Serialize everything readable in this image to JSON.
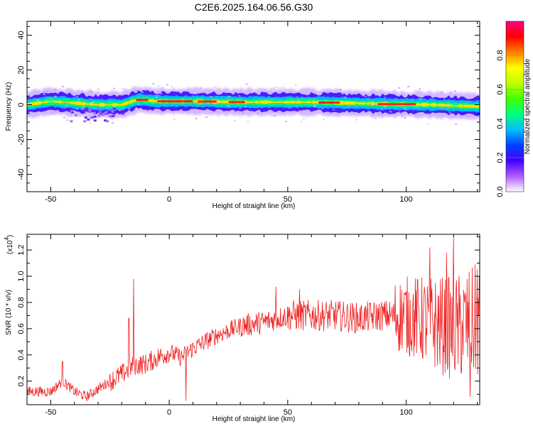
{
  "title": "C2E6.2025.164.06.56.G30",
  "chart_data": [
    {
      "type": "heatmap",
      "xlabel": "Height of straight line (km)",
      "ylabel": "Frequency (Hz)",
      "xlim": [
        -60,
        131
      ],
      "ylim": [
        -50,
        48
      ],
      "xticks": [
        -50,
        0,
        50,
        100
      ],
      "yticks": [
        -40,
        -20,
        0,
        20,
        40
      ],
      "colorbar": {
        "label": "Normalized spectral amplitude",
        "range": [
          0,
          1
        ],
        "ticks": [
          "0.0",
          "0.2",
          "0.4",
          "0.6",
          "0.8"
        ],
        "colors": [
          "#ffffff",
          "#b05cff",
          "#4000ff",
          "#0040ff",
          "#00c0ff",
          "#00ff80",
          "#40ff00",
          "#c0ff00",
          "#ffff00",
          "#ff8000",
          "#ff0000",
          "#ff0080"
        ]
      },
      "band_center_hz": [
        {
          "x": -60,
          "y": 0
        },
        {
          "x": -50,
          "y": 2
        },
        {
          "x": -40,
          "y": 1
        },
        {
          "x": -30,
          "y": 0
        },
        {
          "x": -20,
          "y": 0
        },
        {
          "x": -13,
          "y": 3
        },
        {
          "x": -5,
          "y": 2
        },
        {
          "x": 10,
          "y": 2
        },
        {
          "x": 30,
          "y": 1.5
        },
        {
          "x": 60,
          "y": 1.5
        },
        {
          "x": 90,
          "y": 0.5
        },
        {
          "x": 110,
          "y": 0
        },
        {
          "x": 131,
          "y": -1
        }
      ]
    },
    {
      "type": "line",
      "xlabel": "Height of straight line (km)",
      "ylabel": "SNR (10 * v/v)",
      "multiplier": "(x10",
      "multiplier_exp": "4",
      "multiplier_close": ")",
      "xlim": [
        -60,
        131
      ],
      "ylim": [
        0.02,
        1.32
      ],
      "xticks": [
        -50,
        0,
        50,
        100
      ],
      "yticks": [
        "0.2",
        "0.4",
        "0.6",
        "0.8",
        "1.0",
        "1.2"
      ],
      "series": [
        {
          "color": "#ee2222",
          "envelope": [
            {
              "x": -60,
              "y": 0.12
            },
            {
              "x": -50,
              "y": 0.12
            },
            {
              "x": -45,
              "y": 0.2
            },
            {
              "x": -40,
              "y": 0.12
            },
            {
              "x": -35,
              "y": 0.08
            },
            {
              "x": -30,
              "y": 0.14
            },
            {
              "x": -25,
              "y": 0.2
            },
            {
              "x": -20,
              "y": 0.25
            },
            {
              "x": -15,
              "y": 0.32
            },
            {
              "x": -10,
              "y": 0.33
            },
            {
              "x": -5,
              "y": 0.38
            },
            {
              "x": 0,
              "y": 0.42
            },
            {
              "x": 5,
              "y": 0.38
            },
            {
              "x": 10,
              "y": 0.45
            },
            {
              "x": 20,
              "y": 0.55
            },
            {
              "x": 30,
              "y": 0.62
            },
            {
              "x": 40,
              "y": 0.65
            },
            {
              "x": 50,
              "y": 0.7
            },
            {
              "x": 60,
              "y": 0.7
            },
            {
              "x": 70,
              "y": 0.7
            },
            {
              "x": 80,
              "y": 0.68
            },
            {
              "x": 90,
              "y": 0.7
            },
            {
              "x": 100,
              "y": 0.7
            },
            {
              "x": 110,
              "y": 0.65
            },
            {
              "x": 120,
              "y": 0.6
            },
            {
              "x": 131,
              "y": 0.65
            }
          ],
          "spikes": [
            {
              "x": -45,
              "y": 0.35
            },
            {
              "x": -15,
              "y": 0.98
            },
            {
              "x": -17,
              "y": 0.68
            },
            {
              "x": 7,
              "y": 0.05
            },
            {
              "x": 120,
              "y": 1.3
            },
            {
              "x": 117,
              "y": 1.18
            },
            {
              "x": 110,
              "y": 1.22
            },
            {
              "x": 127,
              "y": 0.08
            },
            {
              "x": 130,
              "y": 1.05
            },
            {
              "x": 45,
              "y": 0.92
            },
            {
              "x": 55,
              "y": 0.9
            }
          ]
        }
      ]
    }
  ]
}
